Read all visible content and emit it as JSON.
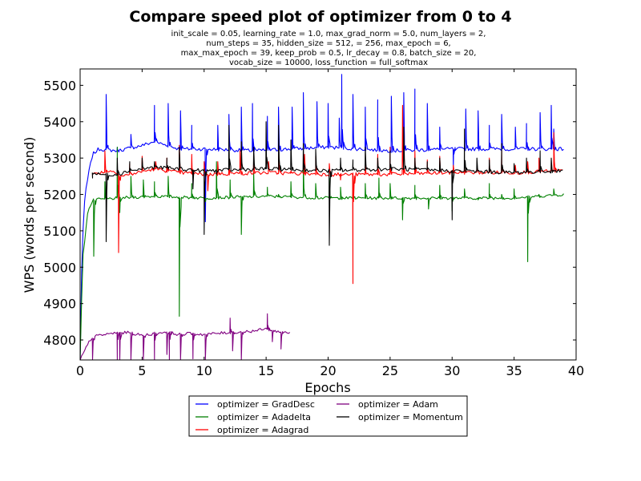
{
  "chart_data": {
    "type": "line",
    "title": "Compare speed plot of optimizer from 0 to 4",
    "subtitle_lines": [
      "init_scale = 0.05, learning_rate = 1.0, max_grad_norm = 5.0, num_layers = 2,",
      "num_steps = 35, hidden_size = 512,    = 256, max_epoch = 6,",
      "max_max_epoch = 39, keep_prob = 0.5, lr_decay = 0.8, batch_size = 20,",
      "vocab_size = 10000, loss_function = full_softmax"
    ],
    "xlabel": "Epochs",
    "ylabel": "WPS (words per second)",
    "xlim": [
      0,
      40
    ],
    "ylim": [
      4745,
      5545
    ],
    "xticks": [
      0,
      5,
      10,
      15,
      20,
      25,
      30,
      35,
      40
    ],
    "yticks": [
      4800,
      4900,
      5000,
      5100,
      5200,
      5300,
      5400,
      5500
    ],
    "grid": false,
    "legend_position": "below plot, center",
    "series": [
      {
        "name": "optimizer = GradDesc",
        "color": "#0000ff",
        "base_curve": [
          [
            0,
            4745
          ],
          [
            0.15,
            5050
          ],
          [
            0.4,
            5200
          ],
          [
            0.7,
            5260
          ],
          [
            1.0,
            5310
          ],
          [
            1.5,
            5325
          ],
          [
            3,
            5320
          ],
          [
            5,
            5335
          ],
          [
            6,
            5345
          ],
          [
            8,
            5325
          ],
          [
            10,
            5325
          ],
          [
            14,
            5320
          ],
          [
            20,
            5330
          ],
          [
            25,
            5320
          ],
          [
            30,
            5325
          ],
          [
            35,
            5325
          ],
          [
            39,
            5325
          ]
        ],
        "noise": 5,
        "spikes": [
          [
            2.1,
            5475
          ],
          [
            3.0,
            5330
          ],
          [
            4.1,
            5365
          ],
          [
            6.0,
            5445
          ],
          [
            7.1,
            5450
          ],
          [
            8.1,
            5430
          ],
          [
            9.0,
            5390
          ],
          [
            10.1,
            5125
          ],
          [
            11.1,
            5390
          ],
          [
            12.0,
            5420
          ],
          [
            13.0,
            5440
          ],
          [
            13.9,
            5450
          ],
          [
            15.1,
            5415
          ],
          [
            16.0,
            5440
          ],
          [
            17.1,
            5440
          ],
          [
            18.0,
            5480
          ],
          [
            19.1,
            5455
          ],
          [
            20.0,
            5450
          ],
          [
            20.9,
            5410
          ],
          [
            21.1,
            5530
          ],
          [
            22.0,
            5475
          ],
          [
            23.0,
            5440
          ],
          [
            24.0,
            5460
          ],
          [
            25.1,
            5470
          ],
          [
            26.1,
            5480
          ],
          [
            27.0,
            5490
          ],
          [
            28.0,
            5450
          ],
          [
            29.0,
            5385
          ],
          [
            30.1,
            5270
          ],
          [
            31.1,
            5435
          ],
          [
            32.1,
            5430
          ],
          [
            33.0,
            5390
          ],
          [
            34.0,
            5420
          ],
          [
            35.1,
            5385
          ],
          [
            36.0,
            5395
          ],
          [
            37.1,
            5425
          ],
          [
            38.0,
            5445
          ],
          [
            38.2,
            5380
          ]
        ]
      },
      {
        "name": "optimizer = Adadelta",
        "color": "#008000",
        "base_curve": [
          [
            0,
            4745
          ],
          [
            0.2,
            5020
          ],
          [
            0.6,
            5150
          ],
          [
            0.9,
            5175
          ],
          [
            1.1,
            5185
          ],
          [
            3,
            5190
          ],
          [
            6,
            5195
          ],
          [
            10,
            5190
          ],
          [
            15,
            5195
          ],
          [
            20,
            5190
          ],
          [
            25,
            5190
          ],
          [
            30,
            5190
          ],
          [
            35,
            5190
          ],
          [
            39,
            5200
          ]
        ],
        "noise": 4,
        "spikes": [
          [
            1.1,
            5030
          ],
          [
            2.0,
            5235
          ],
          [
            3.0,
            5330
          ],
          [
            3.2,
            5150
          ],
          [
            4.1,
            5250
          ],
          [
            5.1,
            5240
          ],
          [
            6.0,
            5235
          ],
          [
            7.1,
            5250
          ],
          [
            8.0,
            4865
          ],
          [
            9.0,
            5230
          ],
          [
            10.1,
            5180
          ],
          [
            11.0,
            5290
          ],
          [
            12.1,
            5240
          ],
          [
            13.0,
            5090
          ],
          [
            14.0,
            5260
          ],
          [
            15.1,
            5220
          ],
          [
            16.0,
            5200
          ],
          [
            17.0,
            5235
          ],
          [
            18.0,
            5290
          ],
          [
            19.0,
            5230
          ],
          [
            20.1,
            5245
          ],
          [
            21.0,
            5220
          ],
          [
            22.0,
            5240
          ],
          [
            23.0,
            5230
          ],
          [
            24.1,
            5245
          ],
          [
            25.0,
            5230
          ],
          [
            26.0,
            5130
          ],
          [
            27.0,
            5225
          ],
          [
            28.1,
            5160
          ],
          [
            29.0,
            5225
          ],
          [
            30.0,
            5155
          ],
          [
            31.0,
            5215
          ],
          [
            32.1,
            5185
          ],
          [
            33.0,
            5230
          ],
          [
            34.0,
            5200
          ],
          [
            35.0,
            5215
          ],
          [
            36.1,
            5015
          ],
          [
            37.0,
            5200
          ],
          [
            38.2,
            5215
          ]
        ]
      },
      {
        "name": "optimizer = Adagrad",
        "color": "#ff0000",
        "base_curve": [
          [
            1,
            5255
          ],
          [
            1.5,
            5260
          ],
          [
            2.8,
            5265
          ],
          [
            3.3,
            5250
          ],
          [
            4,
            5255
          ],
          [
            6,
            5270
          ],
          [
            8,
            5260
          ],
          [
            10,
            5255
          ],
          [
            15,
            5260
          ],
          [
            20,
            5255
          ],
          [
            25,
            5255
          ],
          [
            30,
            5260
          ],
          [
            35,
            5260
          ],
          [
            39,
            5265
          ]
        ],
        "noise": 5,
        "spikes": [
          [
            2.0,
            5320
          ],
          [
            3.1,
            5040
          ],
          [
            4.0,
            5285
          ],
          [
            5.0,
            5305
          ],
          [
            6.1,
            5290
          ],
          [
            7.0,
            5300
          ],
          [
            8.0,
            5335
          ],
          [
            9.0,
            5310
          ],
          [
            10.0,
            5290
          ],
          [
            10.3,
            5210
          ],
          [
            11.1,
            5290
          ],
          [
            12.0,
            5300
          ],
          [
            12.9,
            5320
          ],
          [
            14.0,
            5300
          ],
          [
            15.2,
            5290
          ],
          [
            16.0,
            5330
          ],
          [
            17.0,
            5265
          ],
          [
            18.1,
            5310
          ],
          [
            19.0,
            5305
          ],
          [
            20.1,
            5285
          ],
          [
            21.0,
            5240
          ],
          [
            22.0,
            4955
          ],
          [
            23.0,
            5280
          ],
          [
            24.0,
            5310
          ],
          [
            25.0,
            5330
          ],
          [
            26.0,
            5445
          ],
          [
            27.0,
            5320
          ],
          [
            28.0,
            5295
          ],
          [
            29.0,
            5305
          ],
          [
            30.1,
            5280
          ],
          [
            31.0,
            5285
          ],
          [
            32.0,
            5280
          ],
          [
            33.0,
            5300
          ],
          [
            34.0,
            5320
          ],
          [
            35.1,
            5280
          ],
          [
            36.1,
            5290
          ],
          [
            37.0,
            5300
          ],
          [
            38.2,
            5370
          ]
        ]
      },
      {
        "name": "optimizer = Adam",
        "color": "#800080",
        "base_curve": [
          [
            0,
            4745
          ],
          [
            0.8,
            4800
          ],
          [
            1.2,
            4810
          ],
          [
            2,
            4815
          ],
          [
            3,
            4820
          ],
          [
            4,
            4820
          ],
          [
            5,
            4812
          ],
          [
            6,
            4818
          ],
          [
            7,
            4822
          ],
          [
            8,
            4815
          ],
          [
            9,
            4818
          ],
          [
            10,
            4815
          ],
          [
            11,
            4818
          ],
          [
            12,
            4820
          ],
          [
            13,
            4822
          ],
          [
            14,
            4825
          ],
          [
            15,
            4830
          ],
          [
            16,
            4822
          ],
          [
            17,
            4820
          ]
        ],
        "noise": 4,
        "spikes": [
          [
            1.0,
            4745
          ],
          [
            3.0,
            4745
          ],
          [
            3.2,
            4745
          ],
          [
            4.1,
            4745
          ],
          [
            5.1,
            4745
          ],
          [
            6.0,
            4745
          ],
          [
            7.0,
            4760
          ],
          [
            7.2,
            4745
          ],
          [
            8.1,
            4745
          ],
          [
            9.1,
            4748
          ],
          [
            10.1,
            4745
          ],
          [
            12.1,
            4860
          ],
          [
            12.3,
            4770
          ],
          [
            13.0,
            4745
          ],
          [
            15.1,
            4872
          ],
          [
            15.5,
            4795
          ],
          [
            16.2,
            4775
          ]
        ]
      },
      {
        "name": "optimizer = Momentum",
        "color": "#000000",
        "base_curve": [
          [
            1,
            5260
          ],
          [
            1.5,
            5255
          ],
          [
            3,
            5255
          ],
          [
            4,
            5265
          ],
          [
            5,
            5270
          ],
          [
            6,
            5275
          ],
          [
            8,
            5270
          ],
          [
            10,
            5265
          ],
          [
            15,
            5270
          ],
          [
            20,
            5265
          ],
          [
            25,
            5270
          ],
          [
            30,
            5265
          ],
          [
            35,
            5260
          ],
          [
            39,
            5265
          ]
        ],
        "noise": 5,
        "spikes": [
          [
            1.0,
            5245
          ],
          [
            2.1,
            5070
          ],
          [
            3.0,
            5300
          ],
          [
            4.0,
            5290
          ],
          [
            5.0,
            5300
          ],
          [
            6.0,
            5290
          ],
          [
            7.0,
            5300
          ],
          [
            8.0,
            5330
          ],
          [
            9.1,
            5215
          ],
          [
            10.0,
            5090
          ],
          [
            11.0,
            5255
          ],
          [
            12.0,
            5390
          ],
          [
            13.0,
            5345
          ],
          [
            14.0,
            5330
          ],
          [
            15.0,
            5400
          ],
          [
            16.0,
            5390
          ],
          [
            17.0,
            5350
          ],
          [
            18.0,
            5340
          ],
          [
            19.0,
            5325
          ],
          [
            20.1,
            5060
          ],
          [
            21.0,
            5300
          ],
          [
            22.0,
            5295
          ],
          [
            23.0,
            5330
          ],
          [
            24.0,
            5300
          ],
          [
            25.0,
            5320
          ],
          [
            26.1,
            5385
          ],
          [
            27.0,
            5300
          ],
          [
            28.0,
            5290
          ],
          [
            29.0,
            5300
          ],
          [
            30.0,
            5130
          ],
          [
            31.0,
            5380
          ],
          [
            32.0,
            5300
          ],
          [
            33.0,
            5295
          ],
          [
            34.0,
            5340
          ],
          [
            35.0,
            5285
          ],
          [
            36.0,
            5300
          ],
          [
            37.1,
            5320
          ],
          [
            38.0,
            5300
          ]
        ]
      }
    ]
  }
}
